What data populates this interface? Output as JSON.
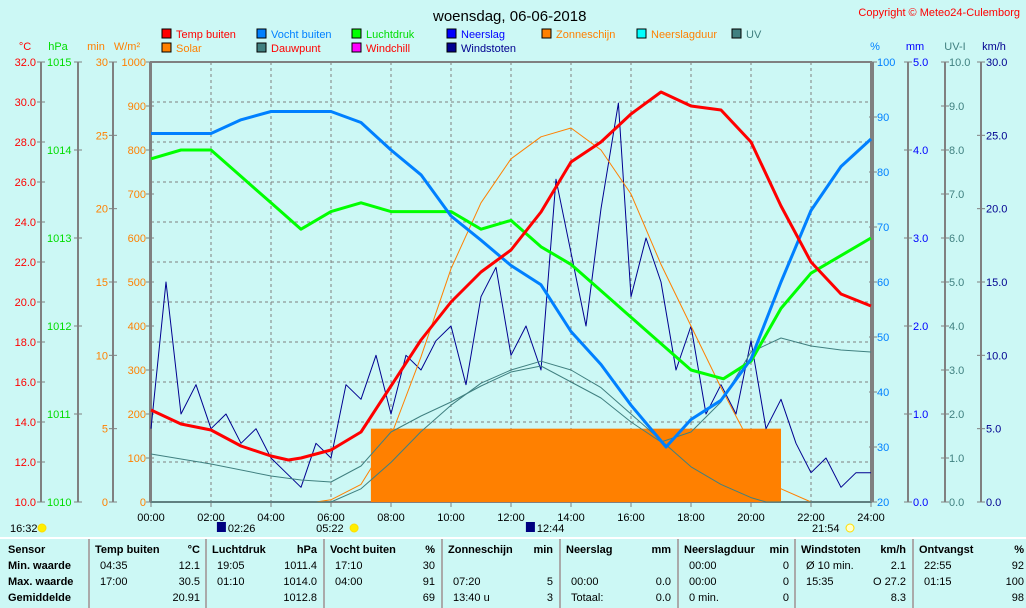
{
  "title": "woensdag, 06-06-2018",
  "copyright": "Copyright © Meteo24-Culemborg",
  "legend": [
    {
      "label": "Temp buiten",
      "color": "#ff0000",
      "text_color": "#ff0000"
    },
    {
      "label": "Solar",
      "color": "#ff8000",
      "text_color": "#ff8000"
    },
    {
      "label": "Vocht buiten",
      "color": "#0080ff",
      "text_color": "#0080ff"
    },
    {
      "label": "Dauwpunt",
      "color": "#408080",
      "text_color": "#ff0000"
    },
    {
      "label": "Luchtdruk",
      "color": "#00ff00",
      "text_color": "#00dd00"
    },
    {
      "label": "Windchill",
      "color": "#ff00ff",
      "text_color": "#ff0000"
    },
    {
      "label": "Neerslag",
      "color": "#0000ff",
      "text_color": "#0000ff"
    },
    {
      "label": "Windstoten",
      "color": "#000090",
      "text_color": "#000090"
    },
    {
      "label": "Zonneschijn",
      "color": "#ff8000",
      "text_color": "#ff8000"
    },
    {
      "label": "Neerslagduur",
      "color": "#00ffff",
      "text_color": "#ff8000"
    },
    {
      "label": "UV",
      "color": "#408080",
      "text_color": "#408080"
    }
  ],
  "sun_moon": [
    {
      "time": "16:32",
      "icon": "cloud-icon",
      "hour": -1
    },
    {
      "time": "02:26",
      "icon": "moonrise-icon",
      "hour": 2.43
    },
    {
      "time": "05:22",
      "icon": "sunrise-icon",
      "hour": 5.37
    },
    {
      "time": "12:44",
      "icon": "moonset-icon",
      "hour": 12.73
    },
    {
      "time": "21:54",
      "icon": "sunset-icon",
      "hour": 21.9
    }
  ],
  "chart_data": {
    "type": "line",
    "title": "woensdag, 06-06-2018",
    "xlim": [
      0,
      24
    ],
    "x_ticks": [
      "00:00",
      "02:00",
      "04:00",
      "06:00",
      "08:00",
      "10:00",
      "12:00",
      "14:00",
      "16:00",
      "18:00",
      "20:00",
      "22:00",
      "24:00"
    ],
    "axes": [
      {
        "id": "temp",
        "unit": "°C",
        "min": 10,
        "max": 32,
        "step": 2,
        "decimals": 1,
        "color": "#ff0000"
      },
      {
        "id": "hpa",
        "unit": "hPa",
        "min": 1010,
        "max": 1015,
        "step": 1,
        "decimals": 0,
        "color": "#00dd00"
      },
      {
        "id": "min",
        "unit": "min",
        "min": 0,
        "max": 30,
        "step": 5,
        "decimals": 0,
        "color": "#ff8000"
      },
      {
        "id": "wm2",
        "unit": "W/m²",
        "min": 0,
        "max": 1000,
        "step": 100,
        "decimals": 0,
        "color": "#ff8000"
      },
      {
        "id": "pct",
        "unit": "%",
        "min": 20,
        "max": 100,
        "step": 10,
        "decimals": 0,
        "color": "#0080ff"
      },
      {
        "id": "mm",
        "unit": "mm",
        "min": 0,
        "max": 5,
        "step": 1,
        "decimals": 1,
        "color": "#0000ff"
      },
      {
        "id": "uv",
        "unit": "UV-I",
        "min": 0,
        "max": 10,
        "step": 1,
        "decimals": 1,
        "color": "#408080"
      },
      {
        "id": "kmh",
        "unit": "km/h",
        "min": 0,
        "max": 30,
        "step": 5,
        "decimals": 1,
        "color": "#000090"
      }
    ],
    "bars": [
      {
        "name": "Zonneschijn",
        "axis": "min",
        "color": "#ff8000",
        "from": 7.33,
        "to": 21.0,
        "value": 5
      }
    ],
    "series": [
      {
        "name": "Windstoten",
        "axis": "kmh",
        "color": "#000090",
        "width": 1,
        "points": [
          [
            0,
            5
          ],
          [
            0.5,
            15
          ],
          [
            1,
            6
          ],
          [
            1.5,
            8
          ],
          [
            2,
            5
          ],
          [
            2.5,
            6
          ],
          [
            3,
            4
          ],
          [
            3.5,
            5
          ],
          [
            4,
            3
          ],
          [
            4.5,
            2
          ],
          [
            5,
            1
          ],
          [
            5.5,
            4
          ],
          [
            6,
            3
          ],
          [
            6.5,
            8
          ],
          [
            7,
            7
          ],
          [
            7.5,
            10
          ],
          [
            8,
            6
          ],
          [
            8.5,
            10
          ],
          [
            9,
            9
          ],
          [
            9.5,
            11
          ],
          [
            10,
            12
          ],
          [
            10.5,
            8
          ],
          [
            11,
            14
          ],
          [
            11.5,
            16
          ],
          [
            12,
            10
          ],
          [
            12.5,
            12
          ],
          [
            13,
            9
          ],
          [
            13.5,
            22
          ],
          [
            14,
            17
          ],
          [
            14.5,
            12
          ],
          [
            15,
            20
          ],
          [
            15.58,
            27.2
          ],
          [
            16,
            14
          ],
          [
            16.5,
            18
          ],
          [
            17,
            15
          ],
          [
            17.5,
            9
          ],
          [
            18,
            12
          ],
          [
            18.5,
            6
          ],
          [
            19,
            8
          ],
          [
            19.5,
            6
          ],
          [
            20,
            11
          ],
          [
            20.5,
            5
          ],
          [
            21,
            7
          ],
          [
            21.5,
            4
          ],
          [
            22,
            2
          ],
          [
            22.5,
            3
          ],
          [
            23,
            1
          ],
          [
            23.5,
            2
          ],
          [
            24,
            2
          ]
        ]
      },
      {
        "name": "Solar",
        "axis": "wm2",
        "color": "#ff8000",
        "width": 1,
        "points": [
          [
            0,
            0
          ],
          [
            5.5,
            0
          ],
          [
            6,
            5
          ],
          [
            7,
            40
          ],
          [
            8,
            150
          ],
          [
            9,
            330
          ],
          [
            10,
            530
          ],
          [
            11,
            680
          ],
          [
            12,
            780
          ],
          [
            13,
            830
          ],
          [
            14,
            850
          ],
          [
            15,
            800
          ],
          [
            16,
            700
          ],
          [
            17,
            540
          ],
          [
            18,
            400
          ],
          [
            19,
            260
          ],
          [
            20,
            130
          ],
          [
            21,
            30
          ],
          [
            22,
            0
          ],
          [
            24,
            0
          ]
        ]
      },
      {
        "name": "UV",
        "axis": "uv",
        "color": "#408080",
        "width": 1,
        "points": [
          [
            0,
            0
          ],
          [
            6,
            0
          ],
          [
            7,
            0.3
          ],
          [
            8,
            0.9
          ],
          [
            9,
            1.6
          ],
          [
            10,
            2.2
          ],
          [
            11,
            2.7
          ],
          [
            12,
            3.0
          ],
          [
            13,
            3.2
          ],
          [
            14,
            3.0
          ],
          [
            15,
            2.6
          ],
          [
            16,
            2.0
          ],
          [
            17,
            1.4
          ],
          [
            18,
            0.8
          ],
          [
            19,
            0.4
          ],
          [
            20,
            0.1
          ],
          [
            20.5,
            0
          ],
          [
            24,
            0
          ]
        ]
      },
      {
        "name": "Dauwpunt",
        "axis": "temp",
        "color": "#408080",
        "width": 1,
        "points": [
          [
            0,
            12.4
          ],
          [
            2,
            11.9
          ],
          [
            4,
            11.3
          ],
          [
            5,
            11.1
          ],
          [
            6,
            11.0
          ],
          [
            7,
            11.8
          ],
          [
            8,
            13.5
          ],
          [
            9,
            14.3
          ],
          [
            10,
            15.0
          ],
          [
            11,
            15.8
          ],
          [
            12,
            16.5
          ],
          [
            13,
            16.8
          ],
          [
            14,
            16.0
          ],
          [
            15,
            15.2
          ],
          [
            16,
            14.0
          ],
          [
            17,
            13.0
          ],
          [
            18,
            13.5
          ],
          [
            19,
            15.0
          ],
          [
            20,
            17.5
          ],
          [
            21,
            18.2
          ],
          [
            22,
            17.8
          ],
          [
            23,
            17.6
          ],
          [
            24,
            17.5
          ]
        ]
      },
      {
        "name": "Luchtdruk",
        "axis": "hpa",
        "color": "#00ff00",
        "width": 3,
        "points": [
          [
            0,
            1013.9
          ],
          [
            1,
            1014.0
          ],
          [
            2,
            1014.0
          ],
          [
            3,
            1013.7
          ],
          [
            4,
            1013.4
          ],
          [
            5,
            1013.1
          ],
          [
            6,
            1013.3
          ],
          [
            7,
            1013.4
          ],
          [
            8,
            1013.3
          ],
          [
            9,
            1013.3
          ],
          [
            10,
            1013.3
          ],
          [
            11,
            1013.1
          ],
          [
            12,
            1013.2
          ],
          [
            13,
            1012.9
          ],
          [
            14,
            1012.7
          ],
          [
            15,
            1012.4
          ],
          [
            16,
            1012.1
          ],
          [
            17,
            1011.8
          ],
          [
            18,
            1011.5
          ],
          [
            19.08,
            1011.4
          ],
          [
            20,
            1011.6
          ],
          [
            21,
            1012.2
          ],
          [
            22,
            1012.6
          ],
          [
            23,
            1012.8
          ],
          [
            24,
            1013.0
          ]
        ]
      },
      {
        "name": "Vocht buiten",
        "axis": "pct",
        "color": "#0080ff",
        "width": 3,
        "points": [
          [
            0,
            87
          ],
          [
            2,
            87
          ],
          [
            3,
            89.5
          ],
          [
            4,
            91
          ],
          [
            6,
            91
          ],
          [
            7,
            89
          ],
          [
            8,
            84
          ],
          [
            9,
            79.5
          ],
          [
            10,
            72
          ],
          [
            11,
            67.6
          ],
          [
            12,
            63
          ],
          [
            13,
            59.5
          ],
          [
            14,
            51
          ],
          [
            15,
            45
          ],
          [
            16,
            37.6
          ],
          [
            17.17,
            30
          ],
          [
            18,
            35
          ],
          [
            19,
            38.5
          ],
          [
            20,
            46
          ],
          [
            21,
            60
          ],
          [
            22,
            73
          ],
          [
            23,
            81
          ],
          [
            24,
            86
          ]
        ]
      },
      {
        "name": "Temp buiten",
        "axis": "temp",
        "color": "#ff0000",
        "width": 3,
        "points": [
          [
            0,
            14.6
          ],
          [
            1,
            13.9
          ],
          [
            2,
            13.6
          ],
          [
            3,
            12.8
          ],
          [
            4,
            12.3
          ],
          [
            4.58,
            12.1
          ],
          [
            5,
            12.2
          ],
          [
            6,
            12.6
          ],
          [
            7,
            13.5
          ],
          [
            8,
            15.8
          ],
          [
            9,
            18.1
          ],
          [
            10,
            20.0
          ],
          [
            11,
            21.5
          ],
          [
            12,
            22.6
          ],
          [
            13,
            24.5
          ],
          [
            14,
            27.0
          ],
          [
            15,
            28.0
          ],
          [
            16,
            29.4
          ],
          [
            17,
            30.5
          ],
          [
            18,
            29.8
          ],
          [
            19,
            29.6
          ],
          [
            20,
            28.0
          ],
          [
            21,
            24.8
          ],
          [
            22,
            22.0
          ],
          [
            23,
            20.4
          ],
          [
            24,
            19.8
          ]
        ]
      }
    ]
  },
  "table": {
    "row_labels": [
      "Sensor",
      "Min. waarde",
      "Max. waarde",
      "Gemiddelde"
    ],
    "columns": [
      {
        "name": "Temp buiten",
        "unit": "°C",
        "rows": [
          [
            "04:35",
            "12.1"
          ],
          [
            "17:00",
            "30.5"
          ],
          [
            "",
            "20.91"
          ]
        ]
      },
      {
        "name": "Luchtdruk",
        "unit": "hPa",
        "rows": [
          [
            "19:05",
            "1011.4"
          ],
          [
            "01:10",
            "1014.0"
          ],
          [
            "",
            "1012.8"
          ]
        ]
      },
      {
        "name": "Vocht buiten",
        "unit": "%",
        "rows": [
          [
            "17:10",
            "30"
          ],
          [
            "04:00",
            "91"
          ],
          [
            "",
            "69"
          ]
        ]
      },
      {
        "name": "Zonneschijn",
        "unit": "min",
        "rows": [
          [
            "",
            ""
          ],
          [
            "07:20",
            "5"
          ],
          [
            "13:40 u",
            "3"
          ]
        ]
      },
      {
        "name": "Neerslag",
        "unit": "mm",
        "rows": [
          [
            "",
            ""
          ],
          [
            "00:00",
            "0.0"
          ],
          [
            "Totaal:",
            "0.0"
          ]
        ]
      },
      {
        "name": "Neerslagduur",
        "unit": "min",
        "rows": [
          [
            "00:00",
            "0"
          ],
          [
            "00:00",
            "0"
          ],
          [
            "0 min.",
            "0"
          ]
        ]
      },
      {
        "name": "Windstoten",
        "unit": "km/h",
        "rows": [
          [
            "Ø 10 min.",
            "2.1"
          ],
          [
            "15:35",
            "O 27.2"
          ],
          [
            "",
            "8.3"
          ]
        ]
      },
      {
        "name": "Ontvangst",
        "unit": "%",
        "rows": [
          [
            "22:55",
            "92"
          ],
          [
            "01:15",
            "100"
          ],
          [
            "",
            "98"
          ]
        ]
      }
    ]
  }
}
